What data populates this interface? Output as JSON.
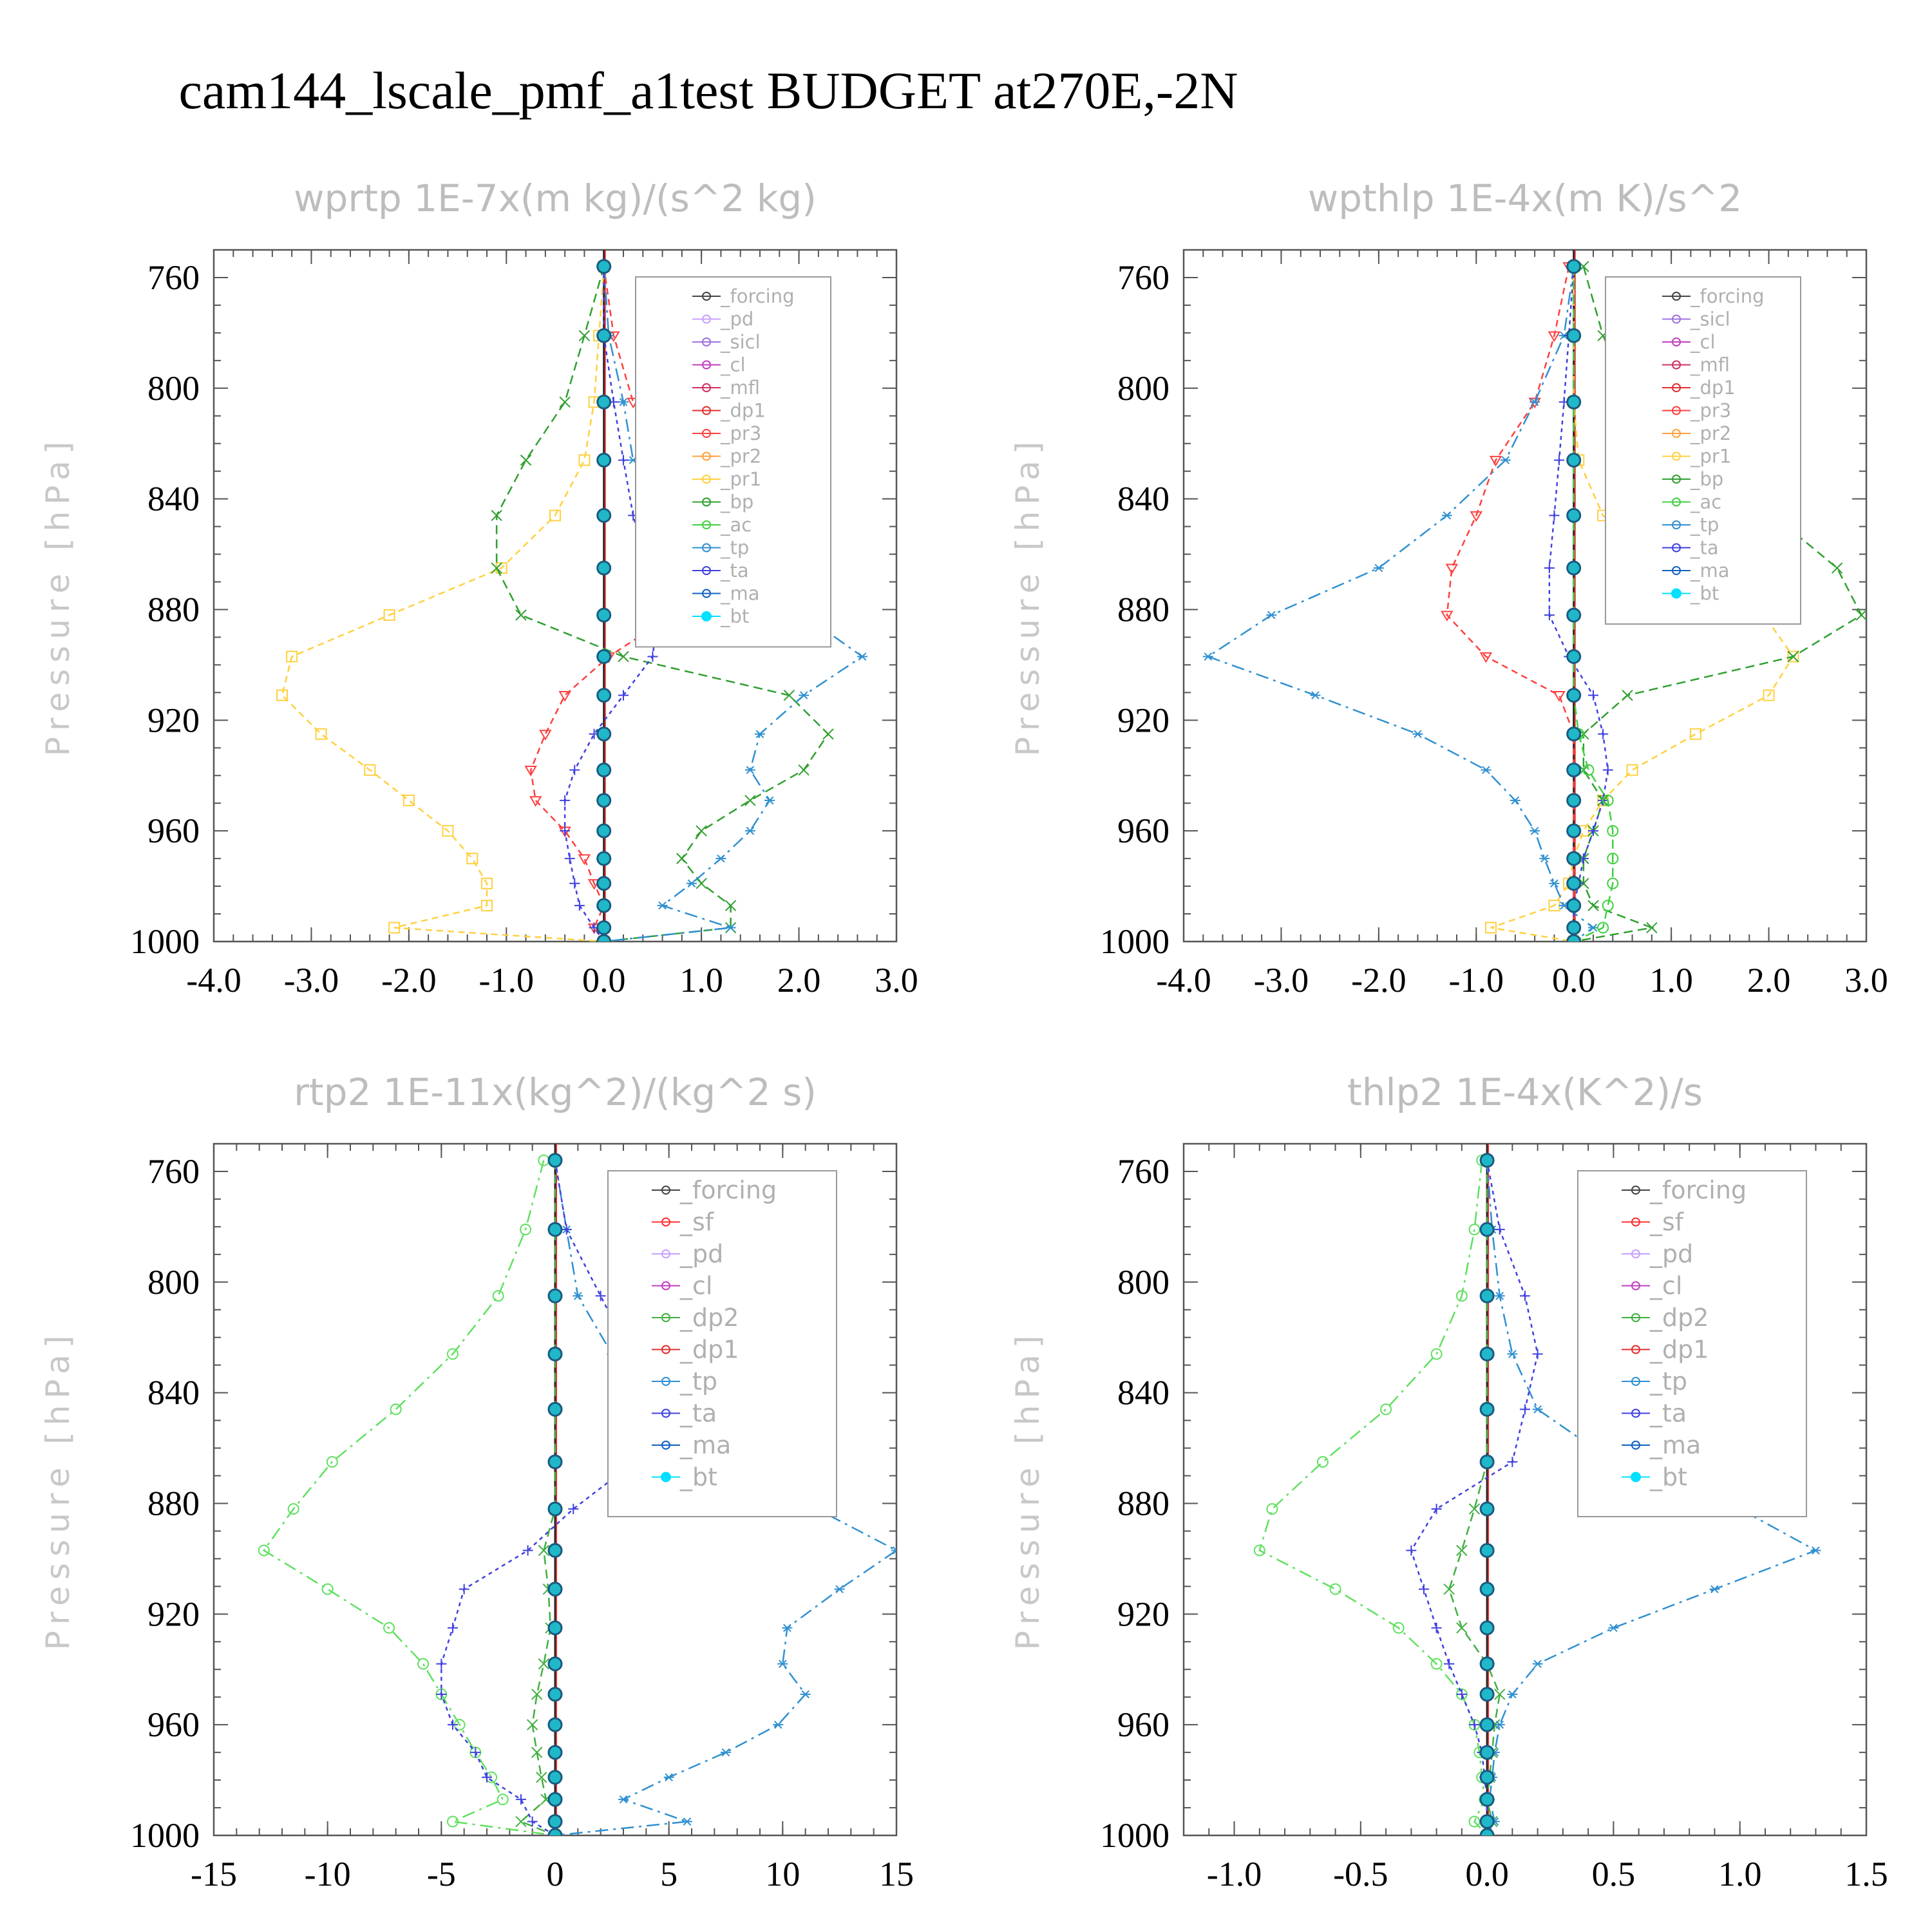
{
  "figure_title": "cam144_lscale_pmf_a1test  BUDGET at270E,-2N",
  "colors": {
    "forcing": "#444444",
    "pd": "#c8a0ff",
    "sicl": "#a070e0",
    "cl": "#c040c0",
    "mfl": "#d03060",
    "dp1": "#e03030",
    "pr3": "#ff4040",
    "pr2": "#ffa040",
    "pr1": "#ffd040",
    "bp": "#30a030",
    "ac": "#40d040",
    "tp": "#3090d0",
    "ta": "#4040e0",
    "ma": "#1060c0",
    "bt": "#00e0ff",
    "sf": "#ff3030",
    "dp2": "#40b040",
    "dp1g": "#60e060"
  },
  "chart_data": [
    {
      "type": "line",
      "title": "wprtp  1E-7x(m kg)/(s^2 kg)",
      "ylabel": "Pressure [hPa]",
      "xlim": [
        -4.0,
        3.0
      ],
      "ylim": [
        1000,
        750
      ],
      "xticks": [
        "-4.0",
        "-3.0",
        "-2.0",
        "-1.0",
        "0.0",
        "1.0",
        "2.0",
        "3.0"
      ],
      "yticks": [
        "760",
        "800",
        "840",
        "880",
        "920",
        "960",
        "1000"
      ],
      "levels": [
        756,
        781,
        805,
        826,
        846,
        865,
        882,
        897,
        911,
        925,
        938,
        949,
        960,
        970,
        979,
        987,
        995,
        1000
      ],
      "legend": [
        "_forcing",
        "_pd",
        "_sicl",
        "_cl",
        "_mfl",
        "_dp1",
        "_pr3",
        "_pr2",
        "_pr1",
        "_bp",
        "_ac",
        "_tp",
        "_ta",
        "_ma",
        "_bt"
      ],
      "series": [
        {
          "name": "_pr3",
          "values": [
            0.0,
            0.1,
            0.3,
            0.65,
            0.8,
            0.85,
            0.7,
            0.05,
            -0.4,
            -0.6,
            -0.75,
            -0.7,
            -0.4,
            -0.2,
            -0.1,
            0.0,
            -0.1,
            0.0
          ]
        },
        {
          "name": "_pr1",
          "values": [
            0.0,
            -0.05,
            -0.1,
            -0.2,
            -0.5,
            -1.05,
            -2.2,
            -3.2,
            -3.3,
            -2.9,
            -2.4,
            -2.0,
            -1.6,
            -1.35,
            -1.2,
            -1.2,
            -2.15,
            0.0
          ]
        },
        {
          "name": "_bp",
          "values": [
            0.0,
            -0.2,
            -0.4,
            -0.8,
            -1.1,
            -1.1,
            -0.85,
            0.2,
            1.9,
            2.3,
            2.05,
            1.5,
            1.0,
            0.8,
            1.0,
            1.3,
            1.3,
            0.0
          ]
        },
        {
          "name": "_tp",
          "values": [
            0.0,
            0.05,
            0.2,
            0.3,
            0.9,
            1.5,
            2.05,
            2.65,
            2.05,
            1.6,
            1.5,
            1.7,
            1.5,
            1.2,
            0.9,
            0.6,
            1.3,
            0.0
          ]
        },
        {
          "name": "_ta",
          "values": [
            0.0,
            0.0,
            0.1,
            0.2,
            0.3,
            0.45,
            0.55,
            0.5,
            0.2,
            -0.1,
            -0.3,
            -0.4,
            -0.4,
            -0.35,
            -0.3,
            -0.25,
            -0.1,
            0.0
          ]
        }
      ]
    },
    {
      "type": "line",
      "title": "wpthlp  1E-4x(m K)/s^2",
      "ylabel": "Pressure [hPa]",
      "xlim": [
        -4.0,
        3.0
      ],
      "ylim": [
        1000,
        750
      ],
      "xticks": [
        "-4.0",
        "-3.0",
        "-2.0",
        "-1.0",
        "0.0",
        "1.0",
        "2.0",
        "3.0"
      ],
      "yticks": [
        "760",
        "800",
        "840",
        "880",
        "920",
        "960",
        "1000"
      ],
      "levels": [
        756,
        781,
        805,
        826,
        846,
        865,
        882,
        897,
        911,
        925,
        938,
        949,
        960,
        970,
        979,
        987,
        995,
        1000
      ],
      "legend": [
        "_forcing",
        "_sicl",
        "_cl",
        "_mfl",
        "_dp1",
        "_pr3",
        "_pr2",
        "_pr1",
        "_bp",
        "_ac",
        "_tp",
        "_ta",
        "_ma",
        "_bt"
      ],
      "series": [
        {
          "name": "_pr3",
          "values": [
            -0.05,
            -0.2,
            -0.4,
            -0.8,
            -1.0,
            -1.25,
            -1.3,
            -0.9,
            -0.15,
            0.0,
            0.0,
            0.0,
            0.0,
            0.0,
            0.0,
            0.0,
            0.0,
            0.0
          ]
        },
        {
          "name": "_pr1",
          "values": [
            0.0,
            0.0,
            0.0,
            0.05,
            0.3,
            1.0,
            1.95,
            2.25,
            2.0,
            1.25,
            0.6,
            0.3,
            0.1,
            0.0,
            -0.05,
            -0.2,
            -0.85,
            0.0
          ]
        },
        {
          "name": "_bp",
          "values": [
            0.1,
            0.3,
            0.6,
            1.3,
            2.05,
            2.7,
            2.95,
            2.25,
            0.55,
            0.1,
            0.1,
            0.3,
            0.2,
            0.1,
            0.1,
            0.2,
            0.8,
            0.0
          ]
        },
        {
          "name": "_tp",
          "values": [
            0.0,
            -0.1,
            -0.4,
            -0.7,
            -1.3,
            -2.0,
            -3.1,
            -3.75,
            -2.65,
            -1.6,
            -0.9,
            -0.6,
            -0.4,
            -0.3,
            -0.2,
            -0.1,
            0.2,
            0.0
          ]
        },
        {
          "name": "_ta",
          "values": [
            0.0,
            -0.05,
            -0.1,
            -0.15,
            -0.2,
            -0.25,
            -0.25,
            -0.05,
            0.2,
            0.3,
            0.35,
            0.3,
            0.2,
            0.1,
            0.05,
            0.0,
            0.0,
            0.0
          ]
        },
        {
          "name": "_ac",
          "values": [
            0.0,
            0.0,
            0.0,
            0.0,
            0.0,
            0.0,
            0.0,
            0.0,
            0.0,
            0.05,
            0.15,
            0.35,
            0.4,
            0.4,
            0.4,
            0.35,
            0.3,
            0.0
          ]
        }
      ]
    },
    {
      "type": "line",
      "title": "rtp2  1E-11x(kg^2)/(kg^2 s)",
      "ylabel": "Pressure [hPa]",
      "xlim": [
        -15,
        15
      ],
      "ylim": [
        1000,
        750
      ],
      "xticks": [
        "-15",
        "-10",
        "-5",
        "0",
        "5",
        "10",
        "15"
      ],
      "yticks": [
        "760",
        "800",
        "840",
        "880",
        "920",
        "960",
        "1000"
      ],
      "levels": [
        756,
        781,
        805,
        826,
        846,
        865,
        882,
        897,
        911,
        925,
        938,
        949,
        960,
        970,
        979,
        987,
        995,
        1000
      ],
      "legend": [
        "_forcing",
        "_sf",
        "_pd",
        "_cl",
        "_dp2",
        "_dp1",
        "_tp",
        "_ta",
        "_ma",
        "_bt"
      ],
      "series": [
        {
          "name": "_dp1",
          "values": [
            -0.5,
            -1.3,
            -2.5,
            -4.5,
            -7.0,
            -9.8,
            -11.5,
            -12.8,
            -10.0,
            -7.3,
            -5.8,
            -5.0,
            -4.2,
            -3.5,
            -2.8,
            -2.3,
            -4.5,
            0.0
          ]
        },
        {
          "name": "_dp2",
          "values": [
            0.0,
            0.0,
            0.0,
            0.0,
            0.0,
            0.0,
            0.0,
            -0.5,
            -0.3,
            -0.2,
            -0.5,
            -0.8,
            -1.0,
            -0.8,
            -0.6,
            -0.4,
            -1.5,
            0.0
          ]
        },
        {
          "name": "_tp",
          "values": [
            0.0,
            0.5,
            1.0,
            2.5,
            3.5,
            6.0,
            11.5,
            15.0,
            12.5,
            10.2,
            10.0,
            11.0,
            9.8,
            7.5,
            5.0,
            3.0,
            5.8,
            0.0
          ]
        },
        {
          "name": "_ta",
          "values": [
            0.0,
            0.5,
            2.0,
            3.3,
            4.0,
            3.5,
            0.8,
            -1.2,
            -4.0,
            -4.5,
            -5.0,
            -5.0,
            -4.5,
            -3.5,
            -3.0,
            -1.5,
            -1.0,
            0.0
          ]
        }
      ]
    },
    {
      "type": "line",
      "title": "thlp2  1E-4x(K^2)/s",
      "ylabel": "Pressure [hPa]",
      "xlim": [
        -1.2,
        1.5
      ],
      "ylim": [
        1000,
        750
      ],
      "xticks": [
        "-1.0",
        "-0.5",
        "0.0",
        "0.5",
        "1.0",
        "1.5"
      ],
      "yticks": [
        "760",
        "800",
        "840",
        "880",
        "920",
        "960",
        "1000"
      ],
      "levels": [
        756,
        781,
        805,
        826,
        846,
        865,
        882,
        897,
        911,
        925,
        938,
        949,
        960,
        970,
        979,
        987,
        995,
        1000
      ],
      "legend": [
        "_forcing",
        "_sf",
        "_pd",
        "_cl",
        "_dp2",
        "_dp1",
        "_tp",
        "_ta",
        "_ma",
        "_bt"
      ],
      "series": [
        {
          "name": "_dp1",
          "values": [
            -0.02,
            -0.05,
            -0.1,
            -0.2,
            -0.4,
            -0.65,
            -0.85,
            -0.9,
            -0.6,
            -0.35,
            -0.2,
            -0.1,
            -0.05,
            -0.03,
            -0.02,
            -0.01,
            -0.05,
            0.0
          ]
        },
        {
          "name": "_dp2",
          "values": [
            0.0,
            0.0,
            0.0,
            0.0,
            0.0,
            0.0,
            -0.05,
            -0.1,
            -0.15,
            -0.1,
            0.0,
            0.05,
            0.03,
            0.02,
            0.01,
            0.0,
            0.02,
            0.0
          ]
        },
        {
          "name": "_tp",
          "values": [
            0.0,
            0.02,
            0.05,
            0.1,
            0.2,
            0.5,
            1.0,
            1.3,
            0.9,
            0.5,
            0.2,
            0.1,
            0.05,
            0.03,
            0.02,
            0.01,
            0.03,
            0.0
          ]
        },
        {
          "name": "_ta",
          "values": [
            0.0,
            0.05,
            0.15,
            0.2,
            0.15,
            0.1,
            -0.2,
            -0.3,
            -0.25,
            -0.2,
            -0.15,
            -0.1,
            -0.05,
            -0.02,
            -0.01,
            0.0,
            0.0,
            0.0
          ]
        }
      ]
    }
  ]
}
